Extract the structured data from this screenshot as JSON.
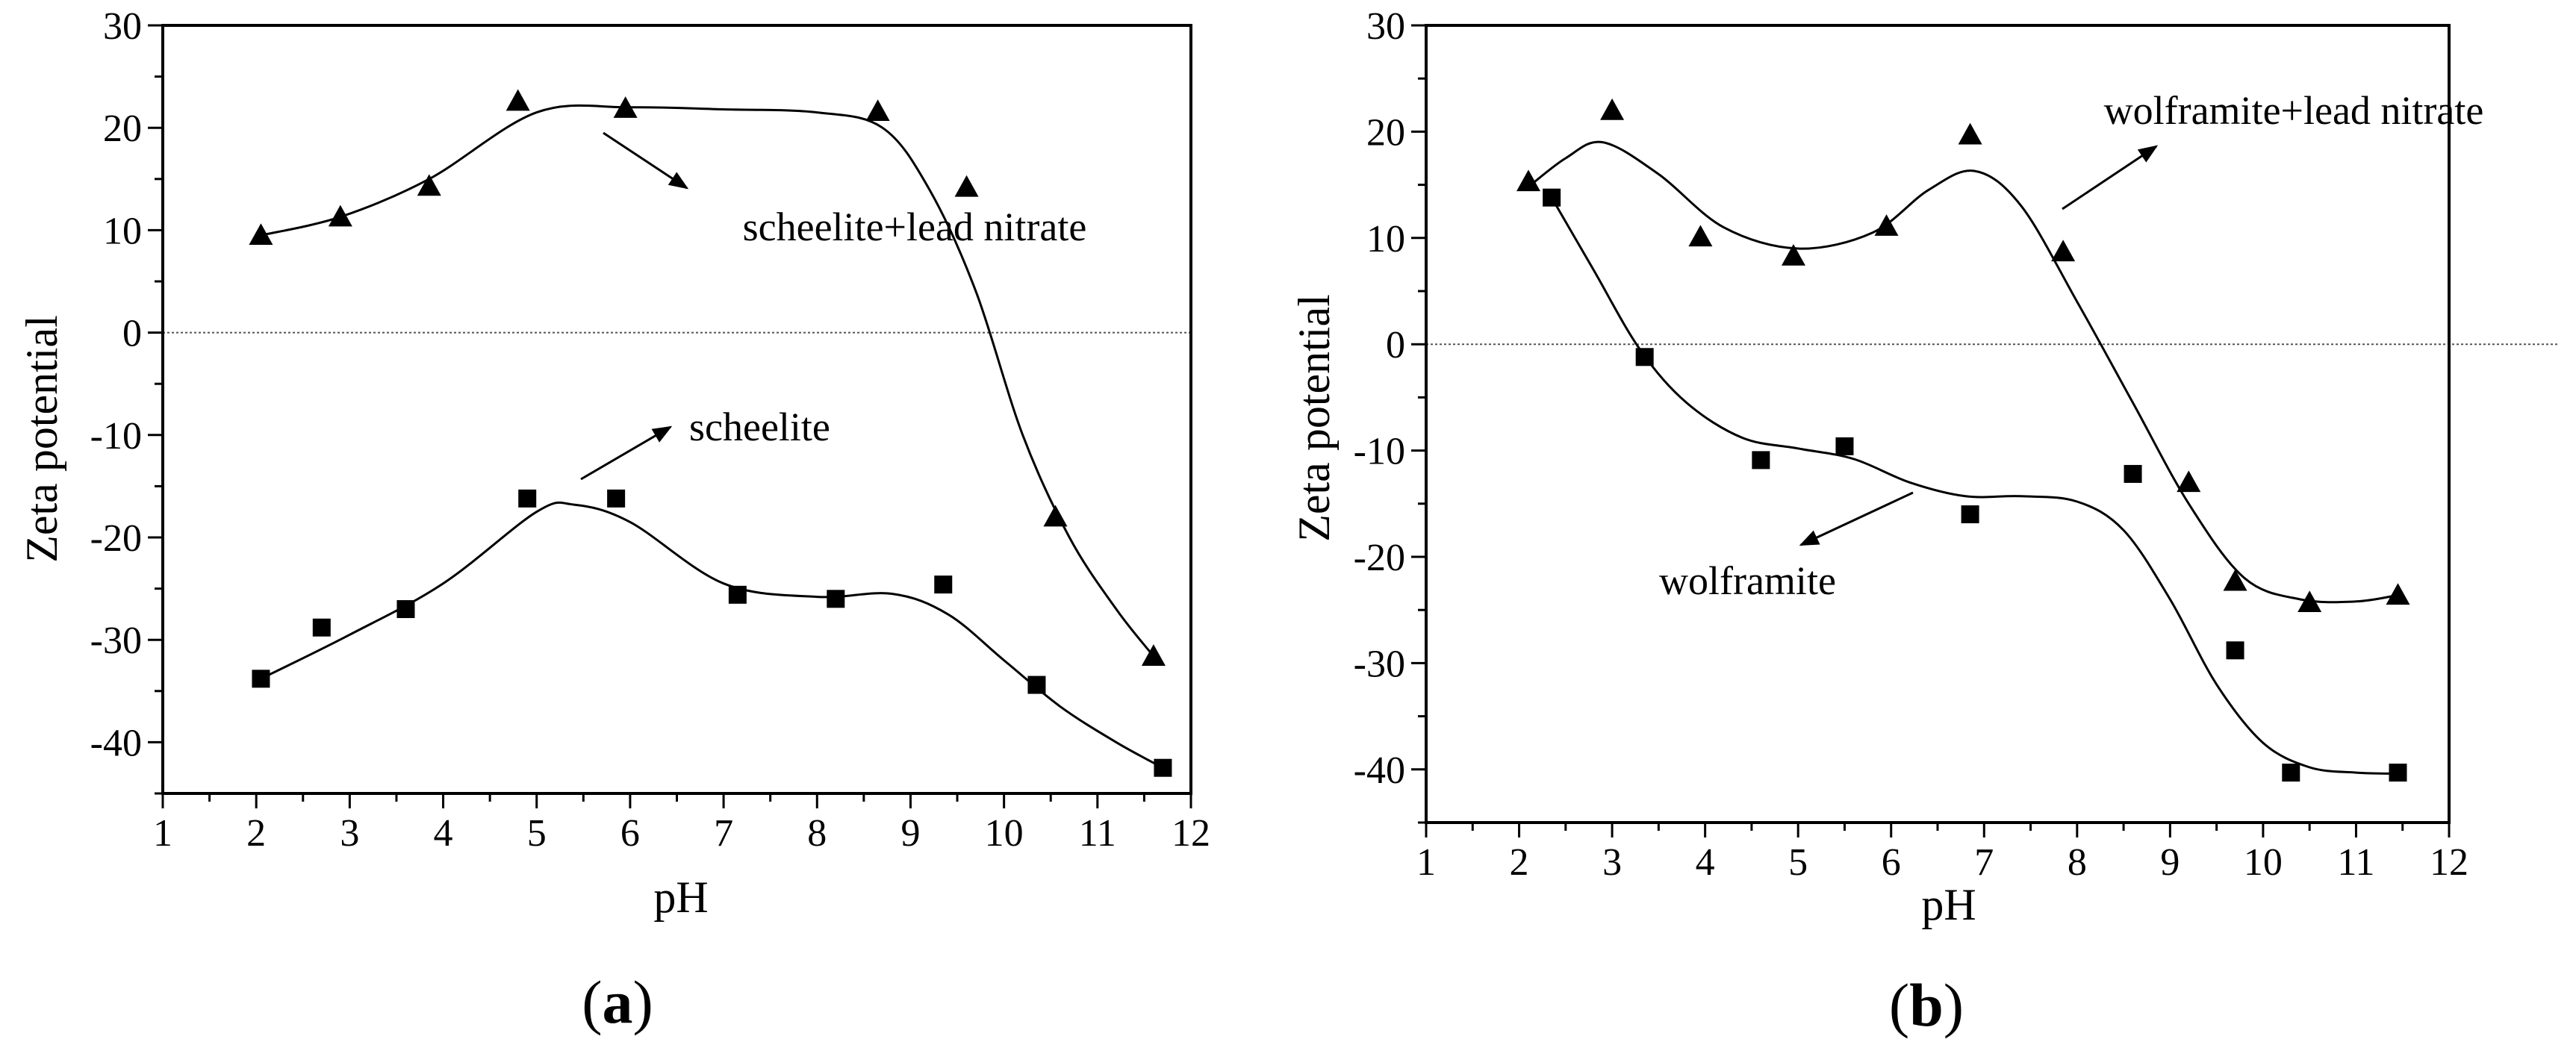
{
  "chart_data": [
    {
      "type": "scatter",
      "panel_label": "(a)",
      "panel_letter": "a",
      "xlabel": "pH",
      "ylabel": "Zeta potential",
      "xlim": [
        1,
        12
      ],
      "ylim": [
        -45,
        30
      ],
      "xticks": [
        1,
        2,
        3,
        4,
        5,
        6,
        7,
        8,
        9,
        10,
        11,
        12
      ],
      "yticks": [
        -40,
        -30,
        -20,
        -10,
        0,
        10,
        20,
        30
      ],
      "zero_line": true,
      "colors": {
        "markers": "#000000",
        "curves": "#000000",
        "zero_line": "#555555"
      },
      "series": [
        {
          "name": "scheelite+lead nitrate",
          "marker": "triangle",
          "x": [
            2.05,
            2.9,
            3.85,
            4.8,
            5.95,
            8.65,
            9.6,
            10.55,
            11.6
          ],
          "y": [
            9.5,
            11.3,
            14.3,
            22.6,
            21.9,
            21.6,
            14.2,
            -18.0,
            -31.6
          ],
          "curve_x": [
            2.05,
            2.9,
            3.85,
            5.0,
            6.0,
            7.0,
            8.0,
            8.7,
            9.2,
            9.7,
            10.2,
            10.7,
            11.2,
            11.6
          ],
          "curve_y": [
            9.5,
            11.3,
            15.0,
            21.5,
            22.0,
            21.8,
            21.5,
            20.0,
            14.0,
            4.0,
            -10.0,
            -20.0,
            -27.0,
            -31.6
          ]
        },
        {
          "name": "scheelite",
          "marker": "square",
          "x": [
            2.05,
            2.7,
            3.6,
            4.9,
            5.85,
            7.15,
            8.2,
            9.35,
            10.35,
            11.7
          ],
          "y": [
            -33.8,
            -28.8,
            -27.0,
            -16.2,
            -16.2,
            -25.6,
            -26.0,
            -24.6,
            -34.4,
            -42.5
          ],
          "curve_x": [
            2.05,
            3.0,
            4.0,
            5.0,
            5.4,
            6.0,
            7.0,
            8.0,
            8.8,
            9.4,
            10.0,
            10.6,
            11.2,
            11.7
          ],
          "curve_y": [
            -33.8,
            -29.5,
            -24.5,
            -17.5,
            -16.8,
            -18.5,
            -24.5,
            -25.8,
            -25.5,
            -27.5,
            -32.0,
            -36.5,
            -40.0,
            -42.5
          ]
        }
      ],
      "annotations": [
        {
          "text": "scheelite+lead nitrate",
          "points_to": "scheelite+lead nitrate"
        },
        {
          "text": "scheelite",
          "points_to": "scheelite"
        }
      ]
    },
    {
      "type": "scatter",
      "panel_label": "(b)",
      "panel_letter": "b",
      "xlabel": "pH",
      "ylabel": "Zeta potential",
      "xlim": [
        1,
        12
      ],
      "ylim": [
        -45,
        30
      ],
      "xticks": [
        1,
        2,
        3,
        4,
        5,
        6,
        7,
        8,
        9,
        10,
        11,
        12
      ],
      "yticks": [
        -40,
        -30,
        -20,
        -10,
        0,
        10,
        20,
        30
      ],
      "zero_line": true,
      "colors": {
        "markers": "#000000",
        "curves": "#000000",
        "zero_line": "#555555"
      },
      "series": [
        {
          "name": "wolframite+lead nitrate",
          "marker": "triangle",
          "x": [
            2.1,
            3.0,
            3.95,
            4.95,
            5.95,
            6.85,
            7.85,
            9.2,
            9.7,
            10.5,
            11.45
          ],
          "y": [
            15.3,
            22.0,
            10.1,
            8.3,
            11.1,
            19.7,
            8.7,
            -13.0,
            -22.3,
            -24.3,
            -23.6
          ],
          "curve_x": [
            2.1,
            2.5,
            2.9,
            3.5,
            4.2,
            5.0,
            5.8,
            6.4,
            6.9,
            7.4,
            8.0,
            8.6,
            9.2,
            9.8,
            10.4,
            11.0,
            11.45
          ],
          "curve_y": [
            14.8,
            17.5,
            19.0,
            16.0,
            11.0,
            9.0,
            10.5,
            14.5,
            16.3,
            13.0,
            4.0,
            -5.5,
            -15.0,
            -22.0,
            -24.0,
            -24.2,
            -23.6
          ]
        },
        {
          "name": "wolframite",
          "marker": "square",
          "x": [
            2.35,
            3.35,
            4.6,
            5.5,
            6.85,
            8.6,
            9.7,
            10.3,
            11.45
          ],
          "y": [
            13.8,
            -1.2,
            -10.9,
            -9.6,
            -16.0,
            -12.2,
            -28.8,
            -40.3,
            -40.3
          ],
          "curve_x": [
            2.35,
            2.8,
            3.3,
            3.8,
            4.4,
            5.0,
            5.6,
            6.2,
            6.8,
            7.4,
            8.0,
            8.5,
            9.0,
            9.5,
            10.0,
            10.5,
            11.0,
            11.45
          ],
          "curve_y": [
            13.8,
            7.0,
            -0.5,
            -5.5,
            -8.8,
            -9.8,
            -10.8,
            -13.0,
            -14.3,
            -14.3,
            -14.8,
            -17.5,
            -24.0,
            -32.0,
            -37.5,
            -39.8,
            -40.3,
            -40.4
          ]
        }
      ],
      "annotations": [
        {
          "text": "wolframite+lead nitrate",
          "points_to": "wolframite+lead nitrate"
        },
        {
          "text": "wolframite",
          "points_to": "wolframite"
        }
      ]
    }
  ]
}
